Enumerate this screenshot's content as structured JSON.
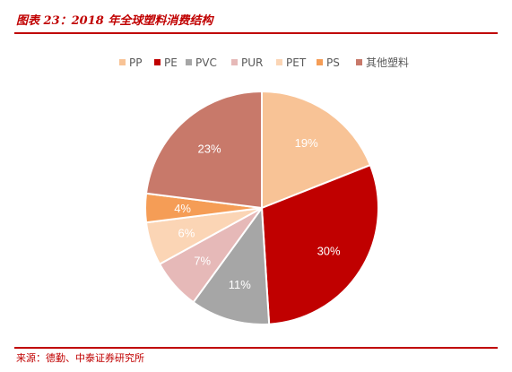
{
  "figure": {
    "title": "图表 23：2018 年全球塑料消费结构",
    "source": "来源：德勤、中泰证券研究所"
  },
  "chart_data": {
    "type": "pie",
    "legend_position": "top",
    "labels": [
      "PP",
      "PE",
      "PVC",
      "PUR",
      "PET",
      "PS",
      "其他塑料"
    ],
    "values": [
      19,
      30,
      11,
      7,
      6,
      4,
      23
    ],
    "value_labels": [
      "19%",
      "30%",
      "11%",
      "7%",
      "6%",
      "4%",
      "23%"
    ],
    "colors": [
      "#f8c396",
      "#c00000",
      "#a6a6a6",
      "#e6b9b8",
      "#fbd5b5",
      "#f59d56",
      "#c8796a"
    ],
    "label_colors": [
      "#ffffff",
      "#ffffff",
      "#ffffff",
      "#ffffff",
      "#ffffff",
      "#ffffff",
      "#ffffff"
    ]
  }
}
